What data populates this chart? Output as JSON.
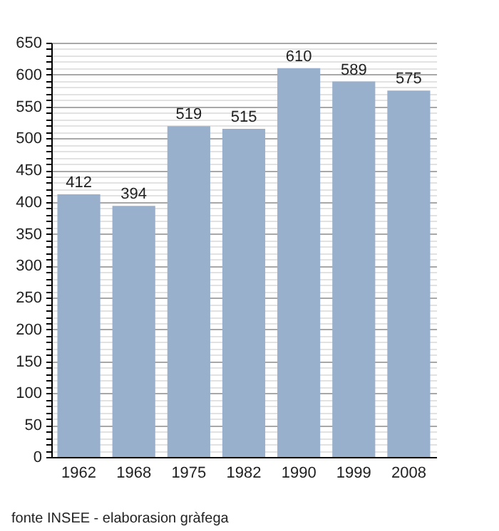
{
  "chart_data": {
    "type": "bar",
    "categories": [
      "1962",
      "1968",
      "1975",
      "1982",
      "1990",
      "1999",
      "2008"
    ],
    "values": [
      412,
      394,
      519,
      515,
      610,
      589,
      575
    ],
    "color": "#98b0cb",
    "ylim": [
      0,
      650
    ],
    "yticks": [
      0,
      {
        "value": 10,
        "label": null
      },
      {
        "value": 20,
        "label": null
      },
      {
        "value": 30,
        "label": null
      },
      {
        "value": 40,
        "label": null
      },
      50,
      {
        "value": 60,
        "label": null
      },
      {
        "value": 70,
        "label": null
      },
      {
        "value": 80,
        "label": null
      },
      {
        "value": 90,
        "label": null
      },
      100,
      {
        "value": 110,
        "label": null
      },
      {
        "value": 120,
        "label": null
      },
      {
        "value": 130,
        "label": null
      },
      {
        "value": 140,
        "label": null
      },
      150,
      {
        "value": 160,
        "label": null
      },
      {
        "value": 170,
        "label": null
      },
      {
        "value": 180,
        "label": null
      },
      {
        "value": 190,
        "label": null
      },
      200,
      {
        "value": 210,
        "label": null
      },
      {
        "value": 220,
        "label": null
      },
      {
        "value": 230,
        "label": null
      },
      {
        "value": 240,
        "label": null
      },
      250,
      {
        "value": 260,
        "label": null
      },
      {
        "value": 270,
        "label": null
      },
      {
        "value": 280,
        "label": null
      },
      {
        "value": 290,
        "label": null
      },
      300,
      {
        "value": 310,
        "label": null
      },
      {
        "value": 320,
        "label": null
      },
      {
        "value": 330,
        "label": null
      },
      {
        "value": 340,
        "label": null
      },
      350,
      {
        "value": 360,
        "label": null
      },
      {
        "value": 370,
        "label": null
      },
      {
        "value": 380,
        "label": null
      },
      {
        "value": 390,
        "label": null
      },
      400,
      {
        "value": 410,
        "label": null
      },
      {
        "value": 420,
        "label": null
      },
      {
        "value": 430,
        "label": null
      },
      {
        "value": 440,
        "label": null
      },
      450,
      {
        "value": 460,
        "label": null
      },
      {
        "value": 470,
        "label": null
      },
      {
        "value": 480,
        "label": null
      },
      {
        "value": 490,
        "label": null
      },
      500,
      {
        "value": 510,
        "label": null
      },
      {
        "value": 520,
        "label": null
      },
      {
        "value": 530,
        "label": null
      },
      {
        "value": 540,
        "label": null
      },
      550,
      {
        "value": 560,
        "label": null
      },
      {
        "value": 570,
        "label": null
      },
      {
        "value": 580,
        "label": null
      },
      {
        "value": 590,
        "label": null
      },
      600,
      {
        "value": 610,
        "label": null
      },
      {
        "value": 620,
        "label": null
      },
      {
        "value": 630,
        "label": null
      },
      {
        "value": 640,
        "label": null
      },
      650
    ],
    "grid": "y",
    "data_labels": true,
    "annotations": [
      "fonte INSEE - elaborasion gràfega"
    ]
  }
}
